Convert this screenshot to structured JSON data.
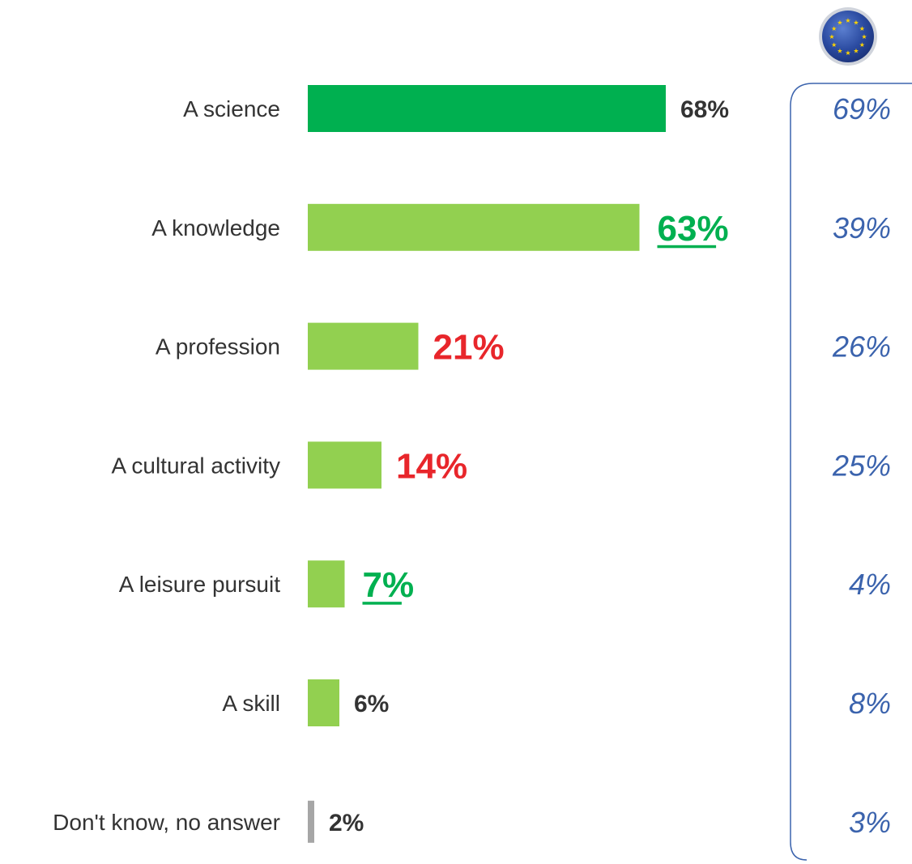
{
  "chart_data": {
    "type": "bar",
    "orientation": "horizontal",
    "categories": [
      "A science",
      "A knowledge",
      "A profession",
      "A cultural activity",
      "A leisure pursuit",
      "A skill",
      "Don't know, no answer"
    ],
    "values": [
      68,
      63,
      21,
      14,
      7,
      6,
      2
    ],
    "value_labels": [
      "68%",
      "63%",
      "21%",
      "14%",
      "7%",
      "6%",
      "2%"
    ],
    "value_label_styles": [
      "normal",
      "higher",
      "lower",
      "lower",
      "higher",
      "normal",
      "normal"
    ],
    "bar_colors": [
      "#00b050",
      "#92d050",
      "#92d050",
      "#92d050",
      "#92d050",
      "#92d050",
      "#a6a6a6"
    ],
    "eu_values": [
      69,
      39,
      26,
      25,
      4,
      8,
      3
    ],
    "eu_labels": [
      "69%",
      "39%",
      "26%",
      "25%",
      "4%",
      "8%",
      "3%"
    ],
    "xlim": [
      0,
      100
    ],
    "grid": false,
    "legend": "none"
  },
  "colors": {
    "dark_green": "#00b050",
    "light_green": "#92d050",
    "grey": "#a6a6a6",
    "higher": "#00b050",
    "lower": "#e8262b",
    "normal": "#333333",
    "eu_blue": "#3b63ad"
  },
  "eu_flag_icon": "eu-flag-icon"
}
